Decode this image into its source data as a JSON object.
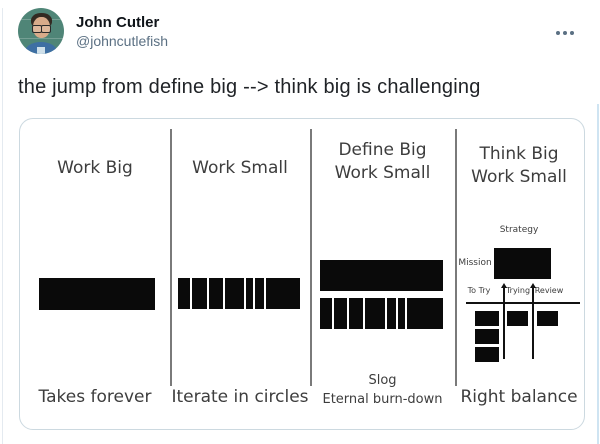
{
  "header": {
    "author_name": "John Cutler",
    "author_handle": "@johncutlefish"
  },
  "icons": {
    "more-icon": "•••"
  },
  "tweet": {
    "text": "the jump from define big --> think big is challenging"
  },
  "image": {
    "panels": [
      {
        "title_lines": [
          "Work Big"
        ],
        "caption_lines": [
          "Takes forever"
        ],
        "bar_style": "solid"
      },
      {
        "title_lines": [
          "Work Small"
        ],
        "caption_lines": [
          "Iterate in circles"
        ],
        "bar_style": "segmented",
        "segments": [
          13,
          15,
          15,
          20,
          8,
          9,
          36
        ]
      },
      {
        "title_lines": [
          "Define Big",
          "Work Small"
        ],
        "caption_lines": [
          "Slog",
          "Eternal burn-down"
        ],
        "bar_style": "solid-over-segmented",
        "segments": [
          13,
          14,
          14,
          22,
          9,
          8,
          38
        ]
      },
      {
        "title_lines": [
          "Think Big",
          "Work Small"
        ],
        "caption_lines": [
          "Right balance"
        ],
        "board": {
          "strategy_label": "Strategy",
          "mission_label": "Mission",
          "columns": [
            "To Try",
            "Trying",
            "Review"
          ],
          "card_counts": [
            3,
            1,
            1
          ]
        }
      }
    ]
  },
  "colors": {
    "author_text": "#0f1419",
    "secondary_text": "#5b7083",
    "card_border": "#ccd9e0",
    "diagram_ink": "#3d3d3d",
    "bar_black": "#0a0a0a",
    "avatar_teal": "#4f8577"
  }
}
